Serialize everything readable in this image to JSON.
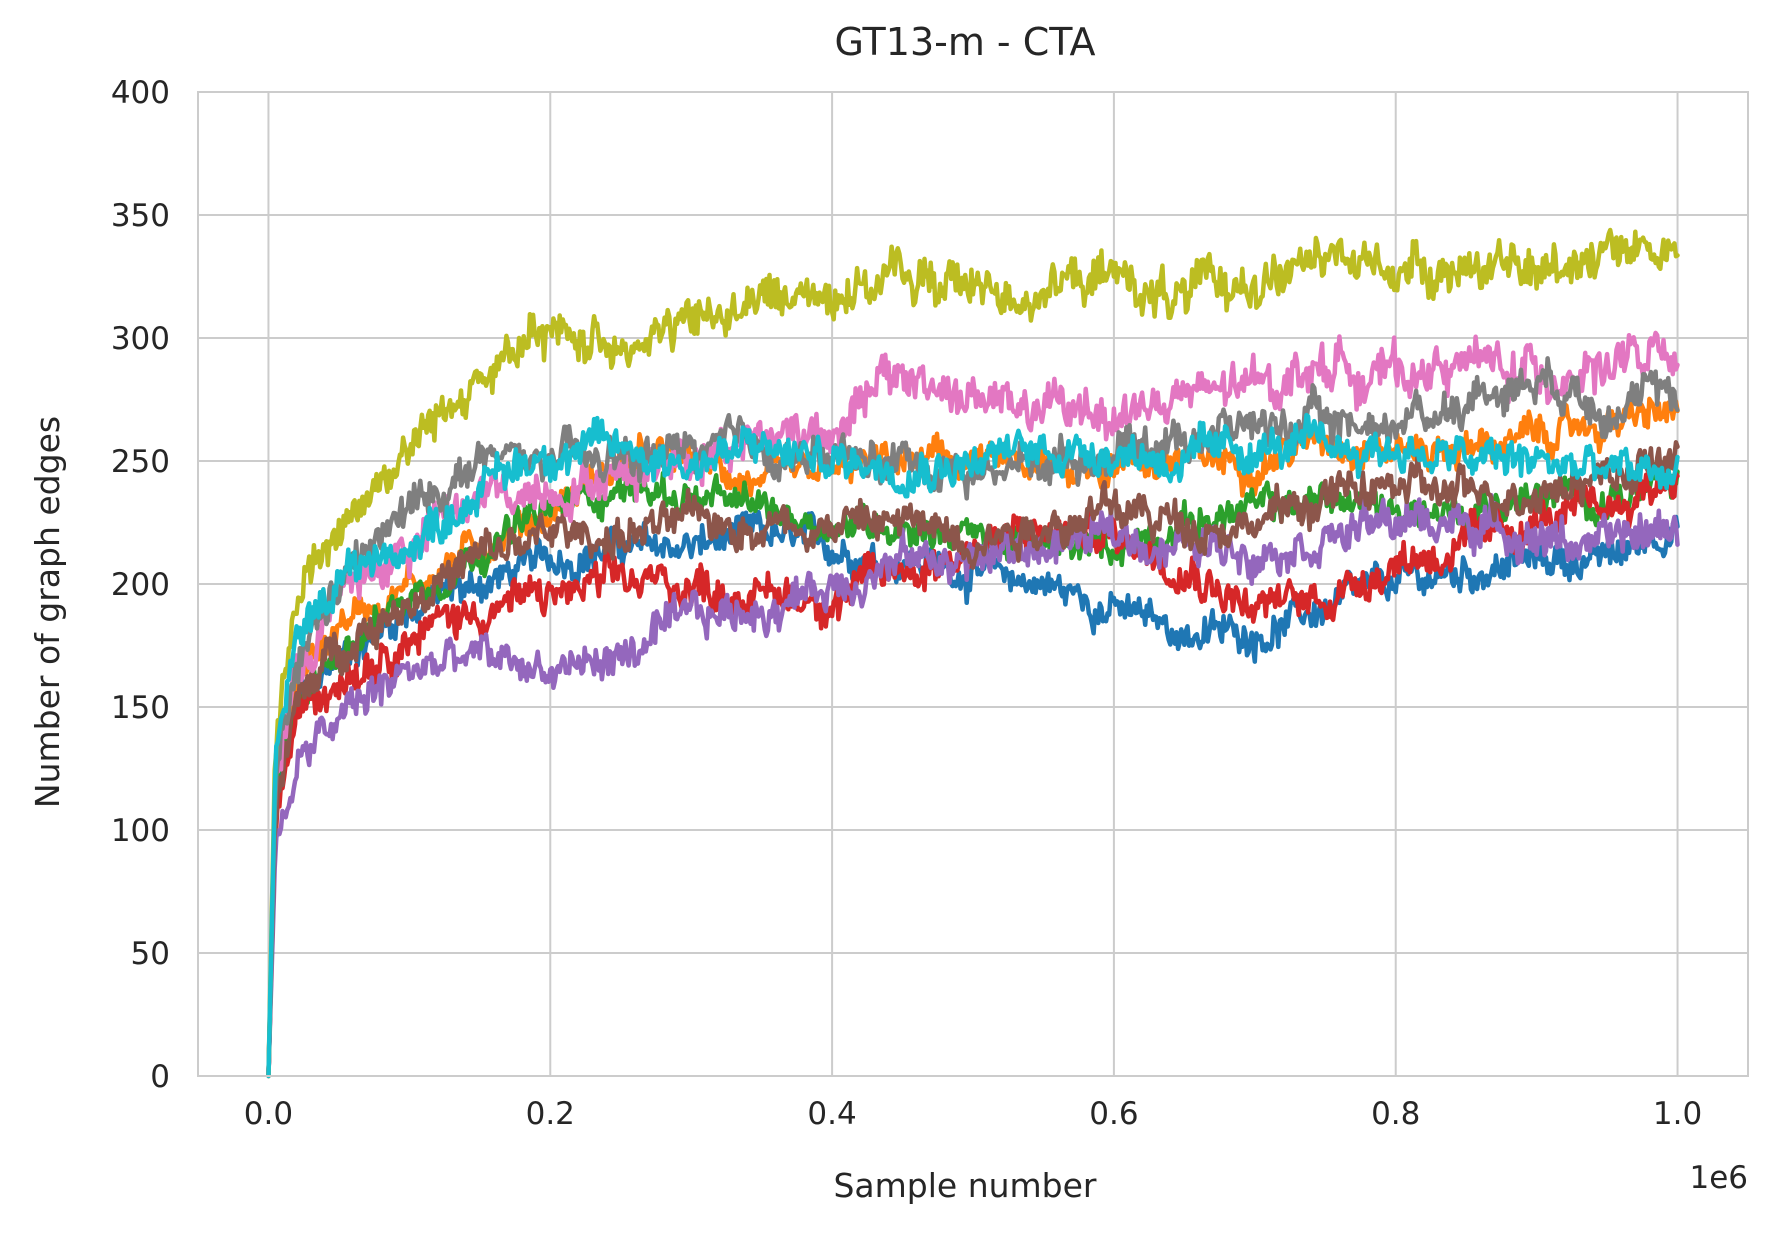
{
  "chart_data": {
    "type": "line",
    "title": "GT13-m - CTA",
    "xlabel": "Sample number",
    "ylabel": "Number of graph edges",
    "x_offset_label": "1e6",
    "xlim": [
      -0.05,
      1.05
    ],
    "ylim": [
      0,
      400
    ],
    "x_ticks": [
      0.0,
      0.2,
      0.4,
      0.6,
      0.8,
      1.0
    ],
    "x_tick_labels": [
      "0.0",
      "0.2",
      "0.4",
      "0.6",
      "0.8",
      "1.0"
    ],
    "y_ticks": [
      0,
      50,
      100,
      150,
      200,
      250,
      300,
      350,
      400
    ],
    "y_tick_labels": [
      "0",
      "50",
      "100",
      "150",
      "200",
      "250",
      "300",
      "350",
      "400"
    ],
    "grid": true,
    "legend": "none",
    "series": [
      {
        "color": "#1f77b4",
        "noise": 6,
        "x": [
          0,
          0.005,
          0.02,
          0.05,
          0.1,
          0.15,
          0.2,
          0.25,
          0.3,
          0.35,
          0.4,
          0.45,
          0.5,
          0.55,
          0.6,
          0.65,
          0.7,
          0.75,
          0.8,
          0.85,
          0.9,
          0.95,
          1.0
        ],
        "y": [
          0,
          110,
          150,
          170,
          190,
          200,
          210,
          215,
          215,
          220,
          215,
          210,
          205,
          200,
          190,
          180,
          180,
          190,
          200,
          205,
          210,
          210,
          225
        ]
      },
      {
        "color": "#ff7f0e",
        "noise": 6,
        "x": [
          0,
          0.005,
          0.02,
          0.05,
          0.1,
          0.15,
          0.2,
          0.25,
          0.3,
          0.35,
          0.4,
          0.45,
          0.5,
          0.55,
          0.6,
          0.65,
          0.7,
          0.75,
          0.8,
          0.85,
          0.9,
          0.95,
          1.0
        ],
        "y": [
          0,
          120,
          160,
          185,
          200,
          215,
          230,
          250,
          250,
          240,
          245,
          250,
          250,
          245,
          250,
          250,
          250,
          260,
          255,
          255,
          260,
          265,
          270
        ]
      },
      {
        "color": "#2ca02c",
        "noise": 6,
        "x": [
          0,
          0.005,
          0.02,
          0.05,
          0.1,
          0.15,
          0.2,
          0.25,
          0.3,
          0.35,
          0.4,
          0.45,
          0.5,
          0.55,
          0.6,
          0.65,
          0.7,
          0.75,
          0.8,
          0.85,
          0.9,
          0.95,
          1.0
        ],
        "y": [
          0,
          115,
          150,
          175,
          195,
          215,
          230,
          240,
          235,
          230,
          225,
          225,
          220,
          215,
          215,
          225,
          230,
          235,
          230,
          230,
          235,
          235,
          240
        ]
      },
      {
        "color": "#d62728",
        "noise": 7,
        "x": [
          0,
          0.005,
          0.02,
          0.05,
          0.1,
          0.15,
          0.2,
          0.25,
          0.3,
          0.35,
          0.4,
          0.45,
          0.5,
          0.55,
          0.6,
          0.65,
          0.7,
          0.75,
          0.8,
          0.85,
          0.9,
          0.95,
          1.0
        ],
        "y": [
          0,
          105,
          145,
          165,
          180,
          190,
          195,
          200,
          200,
          195,
          195,
          205,
          215,
          220,
          220,
          210,
          190,
          195,
          210,
          215,
          225,
          230,
          245
        ]
      },
      {
        "color": "#9467bd",
        "noise": 7,
        "x": [
          0,
          0.005,
          0.02,
          0.05,
          0.1,
          0.15,
          0.2,
          0.25,
          0.3,
          0.35,
          0.4,
          0.45,
          0.5,
          0.55,
          0.6,
          0.65,
          0.7,
          0.75,
          0.8,
          0.85,
          0.9,
          0.95,
          1.0
        ],
        "y": [
          0,
          95,
          125,
          145,
          165,
          170,
          165,
          170,
          185,
          190,
          200,
          210,
          210,
          215,
          220,
          215,
          215,
          220,
          225,
          225,
          220,
          215,
          225
        ]
      },
      {
        "color": "#8c564b",
        "noise": 7,
        "x": [
          0,
          0.005,
          0.02,
          0.05,
          0.1,
          0.15,
          0.2,
          0.25,
          0.3,
          0.35,
          0.4,
          0.45,
          0.5,
          0.55,
          0.6,
          0.65,
          0.7,
          0.75,
          0.8,
          0.85,
          0.9,
          0.95,
          1.0
        ],
        "y": [
          0,
          110,
          150,
          175,
          195,
          210,
          220,
          220,
          225,
          225,
          225,
          225,
          220,
          225,
          230,
          225,
          225,
          235,
          240,
          235,
          240,
          245,
          250
        ]
      },
      {
        "color": "#e377c2",
        "noise": 8,
        "x": [
          0,
          0.005,
          0.02,
          0.05,
          0.1,
          0.15,
          0.2,
          0.25,
          0.3,
          0.35,
          0.4,
          0.45,
          0.5,
          0.55,
          0.6,
          0.65,
          0.7,
          0.75,
          0.8,
          0.85,
          0.9,
          0.95,
          1.0
        ],
        "y": [
          0,
          125,
          165,
          195,
          215,
          235,
          240,
          245,
          255,
          260,
          265,
          285,
          275,
          270,
          270,
          275,
          280,
          290,
          285,
          290,
          285,
          290,
          290
        ]
      },
      {
        "color": "#7f7f7f",
        "noise": 7,
        "x": [
          0,
          0.005,
          0.02,
          0.05,
          0.1,
          0.15,
          0.2,
          0.25,
          0.3,
          0.35,
          0.4,
          0.45,
          0.5,
          0.55,
          0.6,
          0.65,
          0.7,
          0.75,
          0.8,
          0.85,
          0.9,
          0.95,
          1.0
        ],
        "y": [
          0,
          120,
          165,
          200,
          230,
          250,
          250,
          250,
          255,
          255,
          250,
          250,
          245,
          250,
          255,
          260,
          265,
          265,
          265,
          275,
          285,
          275,
          275
        ]
      },
      {
        "color": "#bcbd22",
        "noise": 8,
        "x": [
          0,
          0.005,
          0.02,
          0.05,
          0.1,
          0.15,
          0.2,
          0.25,
          0.3,
          0.35,
          0.4,
          0.45,
          0.5,
          0.55,
          0.6,
          0.65,
          0.7,
          0.75,
          0.8,
          0.85,
          0.9,
          0.95,
          1.0
        ],
        "y": [
          0,
          140,
          195,
          225,
          255,
          285,
          300,
          300,
          305,
          315,
          320,
          325,
          320,
          320,
          325,
          315,
          325,
          330,
          330,
          330,
          325,
          340,
          335
        ]
      },
      {
        "color": "#17becf",
        "noise": 7,
        "x": [
          0,
          0.005,
          0.02,
          0.05,
          0.1,
          0.15,
          0.2,
          0.25,
          0.3,
          0.35,
          0.4,
          0.45,
          0.5,
          0.55,
          0.6,
          0.65,
          0.7,
          0.75,
          0.8,
          0.85,
          0.9,
          0.95,
          1.0
        ],
        "y": [
          0,
          130,
          175,
          205,
          215,
          240,
          255,
          255,
          250,
          255,
          250,
          250,
          250,
          255,
          255,
          250,
          255,
          255,
          255,
          250,
          250,
          245,
          245
        ]
      }
    ]
  }
}
